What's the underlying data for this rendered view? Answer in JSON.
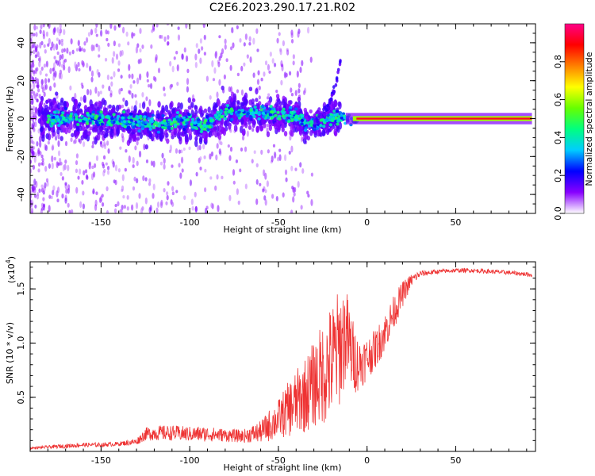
{
  "chart_data": [
    {
      "type": "heatmap",
      "title": "C2E6.2023.290.17.21.R02",
      "xlabel": "Height of straight line (km)",
      "ylabel": "Frequency (Hz)",
      "xlim": [
        -190,
        95
      ],
      "ylim": [
        -50,
        50
      ],
      "xticks": [
        -150,
        -100,
        -50,
        0,
        50
      ],
      "yticks": [
        -40,
        -20,
        0,
        20,
        40
      ],
      "xtick_labels": [
        "-150",
        "-100",
        "-50",
        "0",
        "50"
      ],
      "ytick_labels": [
        "-40",
        "-20",
        "0",
        "20",
        "40"
      ],
      "grid": false,
      "colorbar": {
        "label": "Normalized spectral amplitude",
        "range": [
          0,
          1
        ],
        "ticks": [
          0.0,
          0.2,
          0.4,
          0.6,
          0.8
        ],
        "tick_labels": [
          "0.0",
          "0.2",
          "0.4",
          "0.6",
          "0.8"
        ],
        "colors": [
          "#ffffff",
          "#8800ff",
          "#0000ff",
          "#00ccff",
          "#00ff80",
          "#66ff00",
          "#ffff00",
          "#ff8000",
          "#ff0000",
          "#ff0088"
        ]
      },
      "ridge": {
        "x": [
          -175,
          -160,
          -150,
          -140,
          -130,
          -120,
          -110,
          -100,
          -92,
          -80,
          -70,
          -60,
          -50,
          -40,
          -35,
          -30,
          -25,
          -20,
          -10,
          0,
          10,
          20,
          50,
          93
        ],
        "y": [
          0,
          0,
          0,
          -1,
          -2,
          -2,
          -2,
          -1,
          -5,
          4,
          3,
          3,
          2,
          2,
          -3,
          -3,
          -1,
          1,
          0,
          0,
          0,
          0,
          0,
          0
        ]
      },
      "upsweep": {
        "x": [
          -30,
          -27,
          -24,
          -21,
          -19,
          -17,
          -15
        ],
        "y": [
          -3,
          0,
          3,
          8,
          14,
          20,
          32
        ]
      }
    },
    {
      "type": "line",
      "xlabel": "Height of straight line (km)",
      "ylabel": "SNR (10 * v/v)",
      "y_multiplier_label": "(x10",
      "y_multiplier_exponent": "4",
      "y_multiplier_close": ")",
      "xlim": [
        -190,
        95
      ],
      "ylim": [
        0,
        1.75
      ],
      "xticks": [
        -150,
        -100,
        -50,
        0,
        50
      ],
      "yticks": [
        0.5,
        1.0,
        1.5
      ],
      "xtick_labels": [
        "-150",
        "-100",
        "-50",
        "0",
        "50"
      ],
      "ytick_labels": [
        "0.5",
        "1.0",
        "1.5"
      ],
      "grid": false,
      "series": [
        {
          "color": "#ee3333",
          "x": [
            -190,
            -170,
            -160,
            -150,
            -140,
            -130,
            -125,
            -120,
            -110,
            -100,
            -90,
            -80,
            -70,
            -60,
            -55,
            -50,
            -45,
            -40,
            -35,
            -30,
            -25,
            -20,
            -15,
            -12,
            -8,
            -5,
            0,
            5,
            10,
            15,
            20,
            25,
            30,
            40,
            50,
            60,
            70,
            80,
            93
          ],
          "y": [
            0.03,
            0.05,
            0.06,
            0.06,
            0.07,
            0.09,
            0.16,
            0.17,
            0.17,
            0.16,
            0.16,
            0.15,
            0.14,
            0.18,
            0.24,
            0.3,
            0.38,
            0.45,
            0.52,
            0.62,
            0.72,
            0.82,
            0.98,
            1.08,
            0.88,
            0.8,
            0.86,
            0.95,
            1.1,
            1.28,
            1.45,
            1.58,
            1.64,
            1.66,
            1.67,
            1.67,
            1.66,
            1.65,
            1.63
          ],
          "spread": [
            0.01,
            0.02,
            0.02,
            0.02,
            0.02,
            0.03,
            0.06,
            0.07,
            0.07,
            0.07,
            0.07,
            0.06,
            0.06,
            0.1,
            0.15,
            0.18,
            0.25,
            0.3,
            0.35,
            0.4,
            0.48,
            0.55,
            0.55,
            0.45,
            0.35,
            0.25,
            0.2,
            0.18,
            0.18,
            0.16,
            0.12,
            0.06,
            0.03,
            0.02,
            0.02,
            0.02,
            0.02,
            0.02,
            0.02
          ]
        }
      ]
    }
  ]
}
